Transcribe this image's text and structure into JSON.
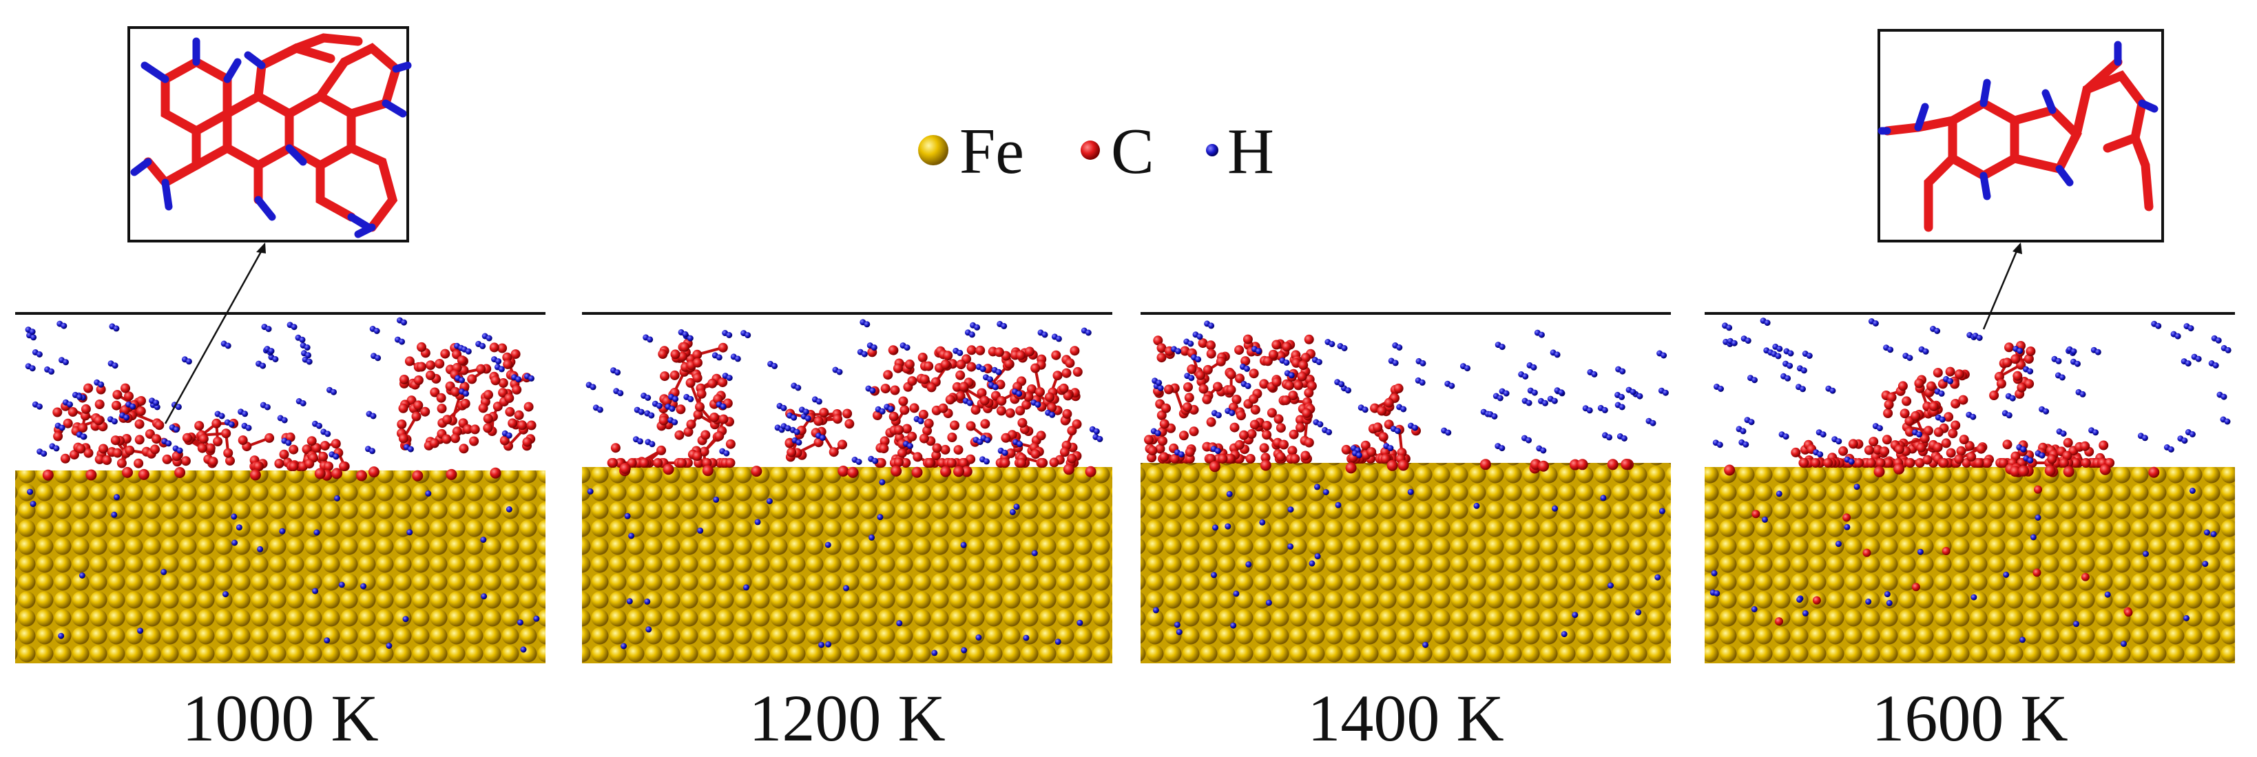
{
  "legend": {
    "items": [
      {
        "label": "Fe",
        "color": "#f2c200"
      },
      {
        "label": "C",
        "color": "#e31a1c"
      },
      {
        "label": "H",
        "color": "#1a1acc"
      }
    ]
  },
  "panels": [
    {
      "id": "p1000",
      "label": "1000 K"
    },
    {
      "id": "p1200",
      "label": "1200 K"
    },
    {
      "id": "p1400",
      "label": "1400 K"
    },
    {
      "id": "p1600",
      "label": "1600 K"
    }
  ],
  "colors": {
    "fe": "#eac000",
    "fe_dark": "#8a6a00",
    "c": "#e31a1c",
    "h": "#1a1acc",
    "line": "#111111"
  }
}
